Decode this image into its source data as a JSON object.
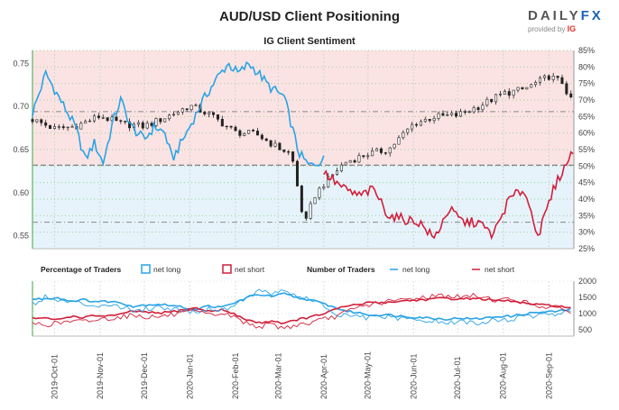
{
  "header": {
    "title": "AUD/USD Client Positioning",
    "subtitle": "IG Client Sentiment",
    "brand": "DAILY",
    "brand_fx": "FX",
    "brand_sub": "provided by",
    "brand_ig": "IG"
  },
  "legend": {
    "pct_title": "Percentage of Traders",
    "pct_long": "net long",
    "pct_short": "net short",
    "num_title": "Number of Traders",
    "num_long": "net long",
    "num_short": "net short"
  },
  "colors": {
    "net_long": "#29a3e6",
    "net_short": "#d21f3a",
    "price": "#222222",
    "bg_long": "#e6f3fb",
    "bg_short": "#fbe3e3",
    "grid": "#9bcf9b"
  },
  "chart_data": [
    {
      "type": "line",
      "title": "AUD/USD Client Positioning",
      "subtitle": "IG Client Sentiment",
      "x_ticks": [
        "2019-Oct-01",
        "2019-Nov-01",
        "2019-Dec-01",
        "2020-Jan-01",
        "2020-Feb-01",
        "2020-Mar-01",
        "2020-Apr-01",
        "2020-May-01",
        "2020-Jun-01",
        "2020-Jul-01",
        "2020-Aug-01",
        "2020-Sep-01"
      ],
      "x_range": [
        "2019-Sep-16",
        "2020-Sep-18"
      ],
      "left_axis": {
        "ticks": [
          0.55,
          0.6,
          0.65,
          0.7,
          0.75
        ],
        "range": [
          0.535,
          0.765
        ]
      },
      "right_axis": {
        "ticks": [
          "25%",
          "30%",
          "35%",
          "40%",
          "45%",
          "50%",
          "55%",
          "60%",
          "65%",
          "70%",
          "75%",
          "80%",
          "85%"
        ],
        "range": [
          25,
          85
        ]
      },
      "reference_lines": {
        "price": 0.632,
        "pct_upper": 66.5,
        "pct_lower": 33
      },
      "price_series": {
        "type": "candlestick",
        "points": [
          [
            "2019-Sep-16",
            0.685
          ],
          [
            "2019-Oct-01",
            0.674
          ],
          [
            "2019-Oct-15",
            0.677
          ],
          [
            "2019-Nov-01",
            0.689
          ],
          [
            "2019-Nov-15",
            0.68
          ],
          [
            "2019-Dec-01",
            0.677
          ],
          [
            "2019-Dec-15",
            0.687
          ],
          [
            "2020-Jan-01",
            0.701
          ],
          [
            "2020-Jan-15",
            0.69
          ],
          [
            "2020-Feb-01",
            0.67
          ],
          [
            "2020-Feb-15",
            0.668
          ],
          [
            "2020-Mar-01",
            0.652
          ],
          [
            "2020-Mar-10",
            0.645
          ],
          [
            "2020-Mar-19",
            0.561
          ],
          [
            "2020-Mar-25",
            0.595
          ],
          [
            "2020-Apr-01",
            0.61
          ],
          [
            "2020-Apr-15",
            0.635
          ],
          [
            "2020-May-01",
            0.645
          ],
          [
            "2020-May-15",
            0.65
          ],
          [
            "2020-Jun-01",
            0.68
          ],
          [
            "2020-Jun-15",
            0.688
          ],
          [
            "2020-Jul-01",
            0.69
          ],
          [
            "2020-Jul-15",
            0.7
          ],
          [
            "2020-Aug-01",
            0.715
          ],
          [
            "2020-Aug-15",
            0.72
          ],
          [
            "2020-Sep-01",
            0.735
          ],
          [
            "2020-Sep-10",
            0.728
          ],
          [
            "2020-Sep-18",
            0.7
          ]
        ]
      },
      "series": [
        {
          "name": "net long",
          "axis": "right",
          "points": [
            [
              "2019-Sep-16",
              66
            ],
            [
              "2019-Sep-25",
              78
            ],
            [
              "2019-Oct-05",
              70
            ],
            [
              "2019-Oct-15",
              62
            ],
            [
              "2019-Oct-22",
              52
            ],
            [
              "2019-Oct-28",
              57
            ],
            [
              "2019-Nov-03",
              51
            ],
            [
              "2019-Nov-10",
              64
            ],
            [
              "2019-Nov-15",
              70
            ],
            [
              "2019-Nov-22",
              62
            ],
            [
              "2019-Dec-01",
              58
            ],
            [
              "2019-Dec-08",
              62
            ],
            [
              "2019-Dec-15",
              60
            ],
            [
              "2019-Dec-20",
              52
            ],
            [
              "2019-Dec-26",
              57
            ],
            [
              "2020-Jan-01",
              62
            ],
            [
              "2020-Jan-10",
              70
            ],
            [
              "2020-Jan-20",
              77
            ],
            [
              "2020-Jan-27",
              81
            ],
            [
              "2020-Feb-03",
              78
            ],
            [
              "2020-Feb-10",
              81
            ],
            [
              "2020-Feb-17",
              78
            ],
            [
              "2020-Feb-24",
              74
            ],
            [
              "2020-Mar-05",
              71
            ],
            [
              "2020-Mar-15",
              54
            ],
            [
              "2020-Mar-22",
              50
            ],
            [
              "2020-Apr-01",
              52
            ]
          ]
        },
        {
          "name": "net short",
          "axis": "right",
          "points": [
            [
              "2020-Apr-01",
              48
            ],
            [
              "2020-Apr-15",
              43
            ],
            [
              "2020-Apr-25",
              41
            ],
            [
              "2020-May-05",
              43
            ],
            [
              "2020-May-15",
              35
            ],
            [
              "2020-May-25",
              34
            ],
            [
              "2020-Jun-05",
              33
            ],
            [
              "2020-Jun-15",
              28
            ],
            [
              "2020-Jun-25",
              37
            ],
            [
              "2020-Jul-05",
              33
            ],
            [
              "2020-Jul-15",
              33
            ],
            [
              "2020-Jul-25",
              29
            ],
            [
              "2020-Aug-05",
              40
            ],
            [
              "2020-Aug-15",
              43
            ],
            [
              "2020-Aug-25",
              29
            ],
            [
              "2020-Sep-05",
              44
            ],
            [
              "2020-Sep-12",
              50
            ],
            [
              "2020-Sep-18",
              55
            ]
          ]
        }
      ]
    },
    {
      "type": "line",
      "title": "Number of Traders",
      "left_axis_range": [
        0,
        100
      ],
      "right_axis": {
        "ticks": [
          500,
          1000,
          1500,
          2000
        ],
        "range": [
          300,
          2000
        ]
      },
      "series": [
        {
          "name": "net long",
          "values": [
            1300,
            1500,
            1400,
            1350,
            1300,
            1250,
            1300,
            1200,
            1100,
            1150,
            1200,
            1150,
            1100,
            1050,
            1150,
            1100,
            1250,
            1500,
            1700,
            1600,
            1750,
            1500,
            1450,
            1250,
            1000,
            900,
            900,
            850,
            900,
            850,
            800,
            800,
            750,
            700,
            750,
            700,
            750,
            800,
            800,
            900,
            950,
            950,
            1000,
            1050
          ]
        },
        {
          "name": "net short",
          "values": [
            700,
            650,
            700,
            750,
            750,
            800,
            850,
            900,
            950,
            900,
            900,
            950,
            1000,
            1050,
            950,
            1000,
            900,
            700,
            600,
            650,
            550,
            650,
            700,
            800,
            900,
            1050,
            1200,
            1300,
            1350,
            1400,
            1450,
            1500,
            1550,
            1550,
            1500,
            1550,
            1500,
            1400,
            1450,
            1350,
            1250,
            1200,
            1150,
            1050
          ]
        }
      ],
      "percentage_series": [
        {
          "name": "net long",
          "values": [
            67,
            68,
            70,
            64,
            66,
            63,
            63,
            61,
            54,
            57,
            58,
            56,
            52,
            49,
            55,
            52,
            60,
            70,
            76,
            72,
            77,
            70,
            66,
            60,
            52,
            45,
            42,
            38,
            39,
            37,
            35,
            34,
            32,
            31,
            33,
            31,
            33,
            36,
            36,
            40,
            43,
            44,
            46,
            50
          ]
        },
        {
          "name": "net short",
          "values": [
            33,
            32,
            30,
            36,
            34,
            37,
            37,
            39,
            46,
            43,
            42,
            44,
            48,
            51,
            45,
            48,
            40,
            30,
            24,
            28,
            23,
            30,
            34,
            40,
            48,
            55,
            58,
            62,
            61,
            63,
            65,
            66,
            68,
            69,
            67,
            69,
            67,
            64,
            64,
            60,
            57,
            56,
            54,
            50
          ]
        }
      ]
    }
  ]
}
